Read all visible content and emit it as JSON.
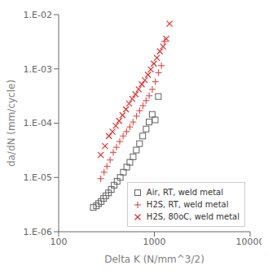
{
  "chart_data": {
    "type": "scatter",
    "xlabel": "Delta K (N/mm^3/2)",
    "ylabel": "da/dN (mm/cycle)",
    "log": true,
    "grid": false,
    "legend": "lower right",
    "xlim": [
      100,
      10000
    ],
    "ylim": [
      1e-06,
      0.01
    ],
    "xticks": [
      100,
      1000,
      10000
    ],
    "yticks": [
      {
        "value": 1e-06,
        "label": "1.E-06"
      },
      {
        "value": 1e-05,
        "label": "1.E-05"
      },
      {
        "value": 0.0001,
        "label": "1.E-04"
      },
      {
        "value": 0.001,
        "label": "1.E-03"
      },
      {
        "value": 0.01,
        "label": "1.E-02"
      }
    ],
    "series": [
      {
        "name": "Air, RT, weld metal",
        "color": "#606060",
        "marker": "square",
        "x": [
          230,
          248,
          262,
          278,
          295,
          312,
          332,
          355,
          380,
          408,
          440,
          475,
          515,
          555,
          600,
          648,
          700,
          755,
          820,
          880,
          950,
          1020,
          1100
        ],
        "values": [
          2.8e-06,
          3e-06,
          3.3e-06,
          3.6e-06,
          4.1e-06,
          4.6e-06,
          5.2e-06,
          6e-06,
          7.2e-06,
          8.5e-06,
          1e-05,
          1.25e-05,
          1.55e-05,
          1.9e-05,
          2.4e-05,
          3.2e-05,
          4.2e-05,
          5.8e-05,
          7.8e-05,
          0.000105,
          0.000145,
          0.000115,
          0.00031
        ]
      },
      {
        "name": "H2S, RT, weld metal",
        "color": "#e05555",
        "marker": "plus",
        "x": [
          275,
          298,
          320,
          345,
          372,
          402,
          435,
          472,
          512,
          555,
          600,
          650,
          702,
          760,
          820,
          882,
          952,
          1025,
          1105,
          1185,
          1275
        ],
        "values": [
          9.5e-06,
          1.25e-05,
          1.6e-05,
          2.1e-05,
          2.9e-05,
          3.6e-05,
          4.6e-05,
          5.8e-05,
          7e-05,
          8.5e-05,
          0.000105,
          0.000135,
          0.00017,
          0.00021,
          0.00026,
          0.00032,
          0.00042,
          0.00058,
          0.00085,
          0.00115,
          0.0032
        ]
      },
      {
        "name": "H2S, 80oC, weld metal",
        "color": "#e03030",
        "marker": "x",
        "x": [
          275,
          305,
          335,
          365,
          395,
          428,
          465,
          505,
          545,
          588,
          635,
          685,
          738,
          795,
          858,
          918,
          988,
          1062,
          1142,
          1232,
          1332,
          1440
        ],
        "values": [
          2.6e-05,
          3.8e-05,
          5.8e-05,
          7e-05,
          9e-05,
          0.00011,
          0.00014,
          0.00018,
          0.00023,
          0.00028,
          0.00034,
          0.00042,
          0.00052,
          0.00062,
          0.00078,
          0.00098,
          0.00125,
          0.0016,
          0.0021,
          0.0026,
          0.0036,
          0.0068
        ]
      }
    ]
  }
}
